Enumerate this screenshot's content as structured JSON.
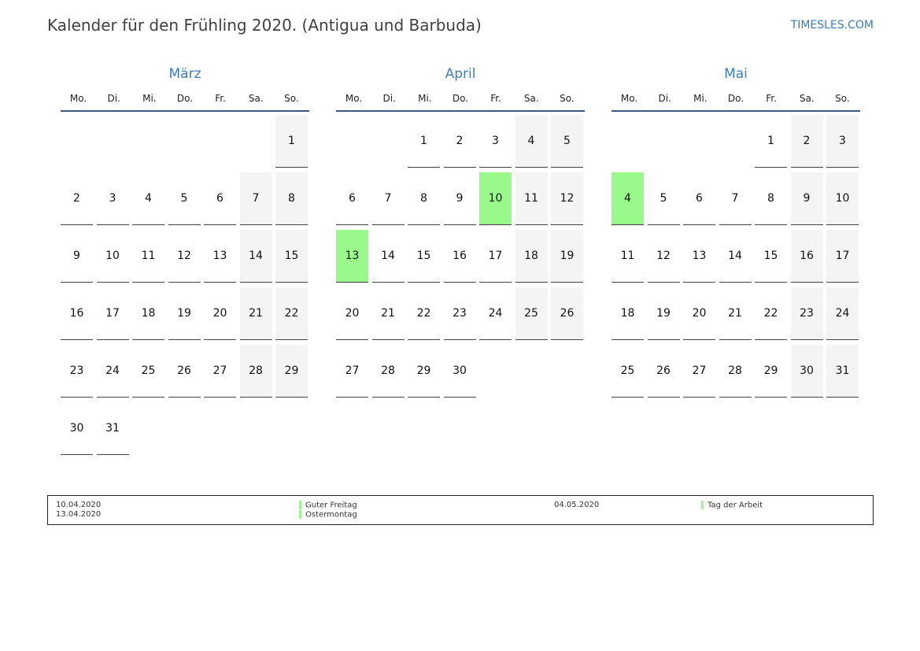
{
  "title": "Kalender für den Frühling 2020. (Antigua und Barbuda)",
  "logo": "TIMESLES.COM",
  "weekdays": [
    "Mo.",
    "Di.",
    "Mi.",
    "Do.",
    "Fr.",
    "Sa.",
    "So."
  ],
  "colors": {
    "accent": "#3a7dc0",
    "holiday": "#99f98a",
    "weekend": "#f4f4f4"
  },
  "months": [
    {
      "name": "März",
      "first_weekday": "So.",
      "days": 31,
      "holidays": []
    },
    {
      "name": "April",
      "first_weekday": "Mi.",
      "days": 30,
      "holidays": [
        10,
        13
      ]
    },
    {
      "name": "Mai",
      "first_weekday": "Fr.",
      "days": 31,
      "holidays": [
        4
      ]
    }
  ],
  "legend": [
    {
      "date": "10.04.2020",
      "name": "Guter Freitag"
    },
    {
      "date": "13.04.2020",
      "name": "Ostermontag"
    },
    {
      "date": "04.05.2020",
      "name": "Tag der Arbeit"
    }
  ]
}
